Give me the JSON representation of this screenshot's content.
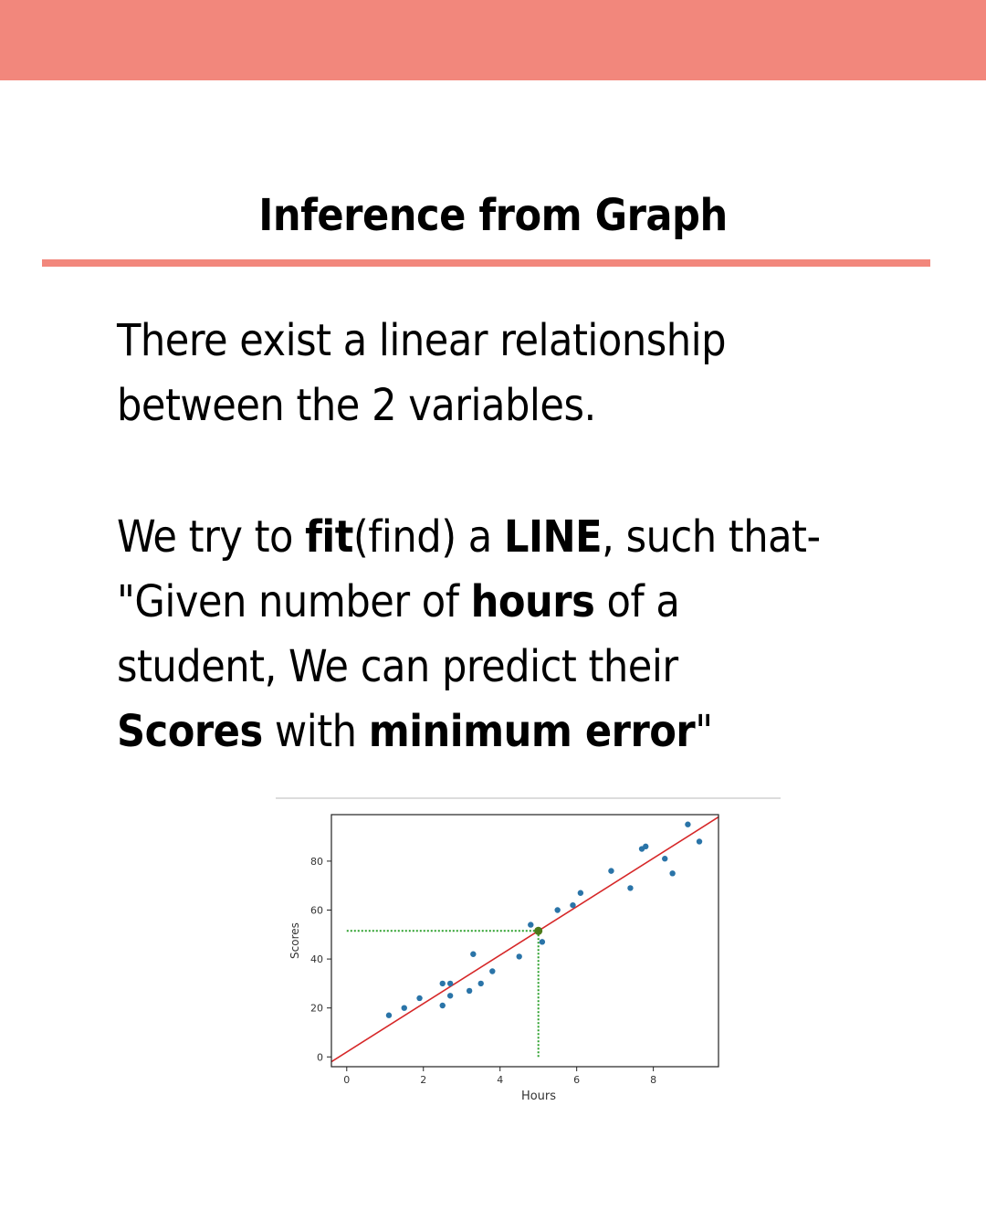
{
  "colors": {
    "accent": "#f2877c",
    "point": "#2a74a8",
    "fit_line": "#d62728",
    "guide": "#2ca02c",
    "highlight": "#4d7a1a"
  },
  "title": "Inference from Graph",
  "para1": {
    "line1": "There exist a linear relationship",
    "line2": "between the 2 variables."
  },
  "para2": {
    "l1a": "We try to ",
    "l1b": "fit",
    "l1c": "(find) a ",
    "l1d": "LINE",
    "l1e": ", such that-",
    "l2a": "\"Given number of ",
    "l2b": "hours",
    "l2c": " of a",
    "l3": "student, We can predict their",
    "l4a": "Scores",
    "l4b": " with ",
    "l4c": "minimum error",
    "l4d": "\""
  },
  "chart_data": {
    "type": "scatter",
    "xlabel": "Hours",
    "ylabel": "Scores",
    "xlim": [
      -0.4,
      9.7
    ],
    "ylim": [
      -4,
      99
    ],
    "xticks": [
      0,
      2,
      4,
      6,
      8
    ],
    "yticks": [
      0,
      20,
      40,
      60,
      80
    ],
    "points": [
      [
        1.1,
        17
      ],
      [
        1.5,
        20
      ],
      [
        1.9,
        24
      ],
      [
        2.5,
        21
      ],
      [
        2.5,
        30
      ],
      [
        2.7,
        25
      ],
      [
        2.7,
        30
      ],
      [
        3.2,
        27
      ],
      [
        3.3,
        42
      ],
      [
        3.5,
        30
      ],
      [
        3.8,
        35
      ],
      [
        4.5,
        41
      ],
      [
        4.8,
        54
      ],
      [
        5.1,
        47
      ],
      [
        5.5,
        60
      ],
      [
        5.9,
        62
      ],
      [
        6.1,
        67
      ],
      [
        6.9,
        76
      ],
      [
        7.4,
        69
      ],
      [
        7.7,
        85
      ],
      [
        7.8,
        86
      ],
      [
        8.3,
        81
      ],
      [
        8.5,
        75
      ],
      [
        8.9,
        95
      ],
      [
        9.2,
        88
      ]
    ],
    "fit_line": {
      "slope": 9.9,
      "intercept": 2.0
    },
    "highlight": {
      "x": 5.0,
      "y": 51.5
    },
    "grid": false,
    "legend": "none"
  }
}
